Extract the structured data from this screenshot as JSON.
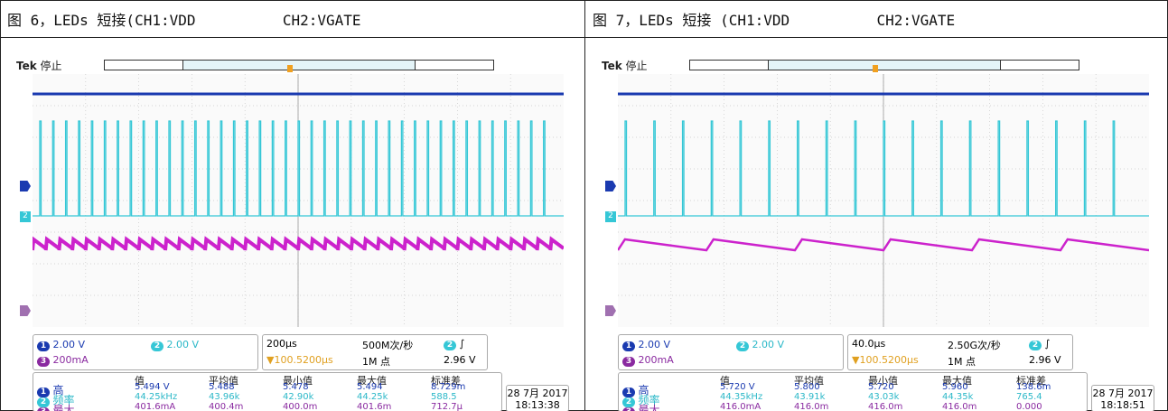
{
  "captions": [
    "图 6，LEDs 短接(CH1:VDD          CH2:VGATE",
    "图 7，LEDs 短接 (CH1:VDD          CH2:VGATE"
  ],
  "colors": {
    "ch1": "#1a3ab0",
    "ch2": "#35c7d6",
    "ch3": "#cc22cc",
    "grid": "#c8c8c8"
  },
  "panels": [
    {
      "tek": "Tek",
      "status": "停止",
      "ch1_scale": "2.00 V",
      "ch2_scale": "2.00 V",
      "ch3_scale": "200mA",
      "timebase": "200μs",
      "sample_rate": "500M次/秒",
      "record": "1M 点",
      "trigger_pos": "▼100.5200μs",
      "trigger_level": "2.96 V",
      "meas_headers": [
        "值",
        "平均值",
        "最小值",
        "最大值",
        "标准差"
      ],
      "meas_rows": [
        {
          "label": "高",
          "values": [
            "5.494 V",
            "5.488",
            "5.478",
            "5.494",
            "8.729m"
          ]
        },
        {
          "label": "频率",
          "values": [
            "44.25kHz",
            "43.96k",
            "42.90k",
            "44.25k",
            "588.5"
          ]
        },
        {
          "label": "最大",
          "values": [
            "401.6mA",
            "400.4m",
            "400.0m",
            "401.6m",
            "712.7μ"
          ]
        }
      ],
      "date": "28 7月 2017",
      "time": "18:13:38",
      "pulses": 40,
      "ramps": 40
    },
    {
      "tek": "Tek",
      "status": "停止",
      "ch1_scale": "2.00 V",
      "ch2_scale": "2.00 V",
      "ch3_scale": "200mA",
      "timebase": "40.0μs",
      "sample_rate": "2.50G次/秒",
      "record": "1M 点",
      "trigger_pos": "▼100.5200μs",
      "trigger_level": "2.96 V",
      "meas_headers": [
        "值",
        "平均值",
        "最小值",
        "最大值",
        "标准差"
      ],
      "meas_rows": [
        {
          "label": "高",
          "values": [
            "5.720 V",
            "5.800",
            "5.720",
            "5.960",
            "138.6m"
          ]
        },
        {
          "label": "频率",
          "values": [
            "44.35kHz",
            "43.91k",
            "43.03k",
            "44.35k",
            "765.4"
          ]
        },
        {
          "label": "最大",
          "values": [
            "416.0mA",
            "416.0m",
            "416.0m",
            "416.0m",
            "0.000"
          ]
        }
      ],
      "date": "28 7月 2017",
      "time": "18:18:51",
      "pulses": 18,
      "ramps": 6
    }
  ]
}
